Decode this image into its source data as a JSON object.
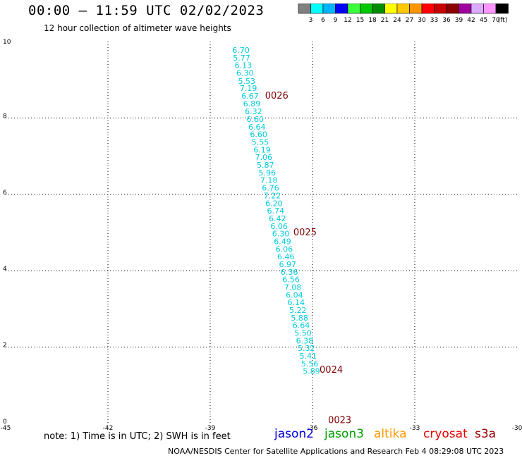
{
  "header": {
    "title": "00:00 – 11:59 UTC 02/02/2023",
    "subtitle": "12 hour collection of altimeter wave heights"
  },
  "colorbar": {
    "colors": [
      "#808080",
      "#00ffff",
      "#00b4ff",
      "#0000ff",
      "#3cff3c",
      "#00c800",
      "#008c00",
      "#ffff00",
      "#ffc800",
      "#ff9600",
      "#ff0000",
      "#c80000",
      "#8c0000",
      "#a000a0",
      "#dcaaff",
      "#ff96ff",
      "#000000"
    ],
    "labels": [
      "3",
      "6",
      "9",
      "12",
      "15",
      "18",
      "21",
      "24",
      "27",
      "30",
      "33",
      "36",
      "39",
      "42",
      "45",
      "70"
    ],
    "unit": "(ft)"
  },
  "chart_data": {
    "type": "scatter",
    "xlim": [
      -45,
      -30
    ],
    "ylim": [
      0,
      10
    ],
    "x_ticks": [
      "-45",
      "-42",
      "-39",
      "-36",
      "-33",
      "-30"
    ],
    "y_ticks": [
      "0",
      "2",
      "4",
      "6",
      "8",
      "10"
    ],
    "grid": true,
    "grid_x": [
      -42,
      -39,
      -36,
      -33
    ],
    "grid_y": [
      2,
      4,
      6,
      8
    ],
    "point_color": "#00ccdd",
    "time_color": "#800000",
    "points": [
      {
        "x": -38.1,
        "y": 9.78,
        "label": "6.70"
      },
      {
        "x": -38.08,
        "y": 9.58,
        "label": "5.77"
      },
      {
        "x": -38.03,
        "y": 9.38,
        "label": "6.13"
      },
      {
        "x": -37.98,
        "y": 9.18,
        "label": "6.30"
      },
      {
        "x": -37.93,
        "y": 8.97,
        "label": "5.53"
      },
      {
        "x": -37.88,
        "y": 8.78,
        "label": "7.19"
      },
      {
        "x": -37.83,
        "y": 8.58,
        "label": "6.67"
      },
      {
        "x": -37.78,
        "y": 8.38,
        "label": "6.89"
      },
      {
        "x": -37.73,
        "y": 8.17,
        "label": "6.32"
      },
      {
        "x": -37.68,
        "y": 7.97,
        "label": "6.60"
      },
      {
        "x": -37.63,
        "y": 7.77,
        "label": "6.64"
      },
      {
        "x": -37.58,
        "y": 7.57,
        "label": "6.60"
      },
      {
        "x": -37.53,
        "y": 7.37,
        "label": "5.55"
      },
      {
        "x": -37.48,
        "y": 7.17,
        "label": "6.19"
      },
      {
        "x": -37.43,
        "y": 6.97,
        "label": "7.06"
      },
      {
        "x": -37.38,
        "y": 6.77,
        "label": "5.87"
      },
      {
        "x": -37.33,
        "y": 6.57,
        "label": "5.96"
      },
      {
        "x": -37.28,
        "y": 6.37,
        "label": "7.18"
      },
      {
        "x": -37.23,
        "y": 6.17,
        "label": "6.76"
      },
      {
        "x": -37.18,
        "y": 5.97,
        "label": "7.22"
      },
      {
        "x": -37.13,
        "y": 5.77,
        "label": "6.20"
      },
      {
        "x": -37.08,
        "y": 5.57,
        "label": "6.74"
      },
      {
        "x": -37.03,
        "y": 5.37,
        "label": "6.42"
      },
      {
        "x": -36.98,
        "y": 5.17,
        "label": "6.06"
      },
      {
        "x": -36.93,
        "y": 4.97,
        "label": "6.30"
      },
      {
        "x": -36.88,
        "y": 4.77,
        "label": "6.49"
      },
      {
        "x": -36.83,
        "y": 4.57,
        "label": "6.06"
      },
      {
        "x": -36.78,
        "y": 4.37,
        "label": "6.46"
      },
      {
        "x": -36.73,
        "y": 4.17,
        "label": "6.97"
      },
      {
        "x": -36.68,
        "y": 3.97,
        "label": "6.36"
      },
      {
        "x": -36.63,
        "y": 3.77,
        "label": "6.56"
      },
      {
        "x": -36.58,
        "y": 3.57,
        "label": "7.08"
      },
      {
        "x": -36.53,
        "y": 3.37,
        "label": "6.04"
      },
      {
        "x": -36.48,
        "y": 3.17,
        "label": "6.14"
      },
      {
        "x": -36.43,
        "y": 2.97,
        "label": "5.22"
      },
      {
        "x": -36.38,
        "y": 2.77,
        "label": "5.88"
      },
      {
        "x": -36.33,
        "y": 2.57,
        "label": "6.64"
      },
      {
        "x": -36.28,
        "y": 2.37,
        "label": "5.50"
      },
      {
        "x": -36.23,
        "y": 2.17,
        "label": "6.38"
      },
      {
        "x": -36.18,
        "y": 1.97,
        "label": "5.32"
      },
      {
        "x": -36.13,
        "y": 1.77,
        "label": "5.41"
      },
      {
        "x": -36.08,
        "y": 1.57,
        "label": "5.56"
      },
      {
        "x": -36.03,
        "y": 1.37,
        "label": "5.89"
      }
    ],
    "time_labels": [
      {
        "x": -37.05,
        "y": 8.58,
        "label": "0026"
      },
      {
        "x": -36.22,
        "y": 5.0,
        "label": "0025"
      },
      {
        "x": -35.45,
        "y": 1.4,
        "label": "0024"
      },
      {
        "x": -35.2,
        "y": 0.08,
        "label": "0023"
      }
    ]
  },
  "footer": {
    "note": "note:  1) Time is in UTC; 2) SWH is in feet",
    "credit": "NOAA/NESDIS Center for Satellite Applications and Research    Feb  4 08:29:08 UTC 2023"
  },
  "legend": [
    {
      "name": "jason2",
      "color": "#0000dd"
    },
    {
      "name": "jason3",
      "color": "#00a000"
    },
    {
      "name": "altika",
      "color": "#ff9900"
    },
    {
      "name": "cryosat",
      "color": "#ee0000"
    },
    {
      "name": "s3a",
      "color": "#990000"
    }
  ]
}
